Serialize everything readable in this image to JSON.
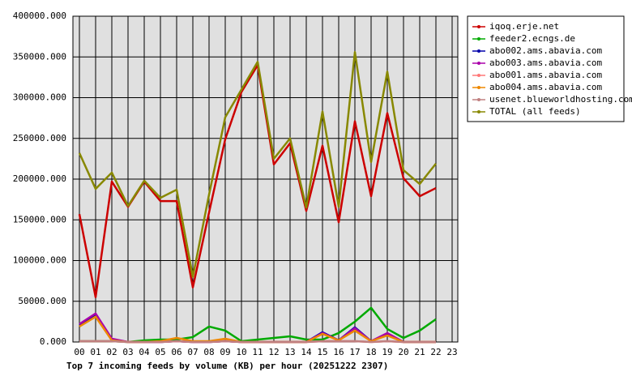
{
  "chart_data": {
    "type": "line",
    "title": "Top 7 incoming feeds by volume (KB) per hour (20251222 2307)",
    "categories": [
      "00",
      "01",
      "02",
      "03",
      "04",
      "05",
      "06",
      "07",
      "08",
      "09",
      "10",
      "11",
      "12",
      "13",
      "14",
      "15",
      "16",
      "17",
      "18",
      "19",
      "20",
      "21",
      "22",
      "23"
    ],
    "ylim": [
      0,
      400000
    ],
    "yticks": [
      {
        "value": 0,
        "label": "0.000"
      },
      {
        "value": 50000,
        "label": "50000.000"
      },
      {
        "value": 100000,
        "label": "100000.000"
      },
      {
        "value": 150000,
        "label": "150000.000"
      },
      {
        "value": 200000,
        "label": "200000.000"
      },
      {
        "value": 250000,
        "label": "250000.000"
      },
      {
        "value": 300000,
        "label": "300000.000"
      },
      {
        "value": 350000,
        "label": "350000.000"
      },
      {
        "value": 400000,
        "label": "400000.000"
      }
    ],
    "grid": true,
    "legend": "right",
    "series": [
      {
        "name": "iqoq.erje.net",
        "color": "#cc0000",
        "values": [
          157000,
          55000,
          197000,
          166000,
          197000,
          173000,
          173000,
          67000,
          159000,
          249000,
          307000,
          340000,
          218000,
          244000,
          161000,
          241000,
          147000,
          271000,
          179000,
          281000,
          201000,
          179000,
          189000,
          null
        ]
      },
      {
        "name": "feeder2.ecngs.de",
        "color": "#00aa00",
        "values": [
          1000,
          1000,
          1000,
          0,
          2000,
          3000,
          3000,
          6000,
          19000,
          14000,
          1000,
          3000,
          5000,
          7000,
          3000,
          3000,
          11000,
          25000,
          42000,
          16000,
          5000,
          14000,
          28000,
          null
        ]
      },
      {
        "name": "abo002.ams.abavia.com",
        "color": "#0000aa",
        "values": [
          21000,
          34000,
          3000,
          0,
          0,
          0,
          1000,
          0,
          0,
          1000,
          0,
          0,
          0,
          0,
          0,
          12000,
          2000,
          18000,
          1000,
          10000,
          0,
          0,
          0,
          null
        ]
      },
      {
        "name": "abo003.ams.abavia.com",
        "color": "#aa00aa",
        "values": [
          22000,
          35000,
          4000,
          0,
          0,
          0,
          1000,
          0,
          0,
          1000,
          0,
          0,
          0,
          0,
          0,
          11000,
          2000,
          17000,
          1000,
          11000,
          0,
          0,
          0,
          null
        ]
      },
      {
        "name": "abo001.ams.abavia.com",
        "color": "#ff7777",
        "values": [
          1000,
          1000,
          1000,
          0,
          0,
          0,
          1000,
          0,
          0,
          1000,
          0,
          0,
          0,
          0,
          0,
          1000,
          1000,
          1000,
          0,
          1000,
          0,
          0,
          0,
          null
        ]
      },
      {
        "name": "abo004.ams.abavia.com",
        "color": "#ee8800",
        "values": [
          19000,
          31000,
          2000,
          0,
          0,
          1000,
          5000,
          1000,
          1000,
          4000,
          0,
          0,
          0,
          0,
          0,
          10000,
          2000,
          14000,
          1000,
          8000,
          0,
          0,
          0,
          null
        ]
      },
      {
        "name": "usenet.blueworldhosting.com",
        "color": "#c08080",
        "values": [
          1000,
          1000,
          1000,
          0,
          0,
          0,
          1000,
          0,
          0,
          1000,
          0,
          0,
          0,
          0,
          0,
          1000,
          1000,
          1000,
          0,
          1000,
          0,
          0,
          0,
          null
        ]
      },
      {
        "name": "TOTAL (all feeds)",
        "color": "#888800",
        "values": [
          232000,
          188000,
          208000,
          167000,
          198000,
          177000,
          187000,
          80000,
          181000,
          276000,
          310000,
          344000,
          225000,
          250000,
          165000,
          283000,
          166000,
          356000,
          221000,
          332000,
          211000,
          194000,
          219000,
          null
        ]
      }
    ]
  }
}
